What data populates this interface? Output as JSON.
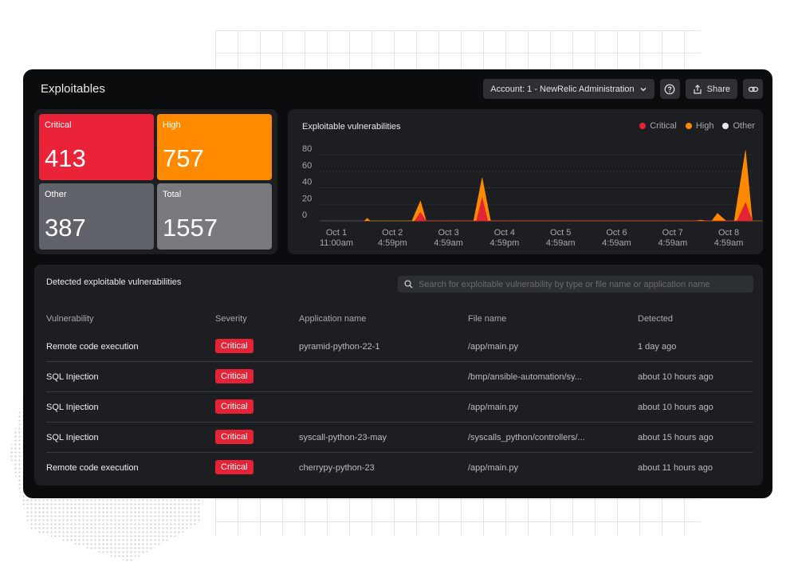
{
  "app": {
    "title": "Exploitables"
  },
  "toolbar": {
    "account_label": "Account: 1 - NewRelic Administration",
    "share_label": "Share"
  },
  "stats": [
    {
      "label": "Critical",
      "value": "413",
      "color": "#ea2338"
    },
    {
      "label": "High",
      "value": "757",
      "color": "#ff8a00"
    },
    {
      "label": "Other",
      "value": "387",
      "color": "#5f6268"
    },
    {
      "label": "Total",
      "value": "1557",
      "color": "#77797e"
    }
  ],
  "chart": {
    "title": "Exploitable vulnerabilities",
    "legend": [
      {
        "name": "Critical",
        "color": "#e42336"
      },
      {
        "name": "High",
        "color": "#ff8a00"
      },
      {
        "name": "Other",
        "color": "#e9eaec"
      }
    ]
  },
  "chart_data": {
    "type": "area",
    "title": "Exploitable vulnerabilities",
    "yticks": [
      0,
      20,
      40,
      60,
      80
    ],
    "ylim": [
      0,
      80
    ],
    "xticks": [
      [
        "Oct 1",
        "11:00am"
      ],
      [
        "Oct 2",
        "4:59pm"
      ],
      [
        "Oct 3",
        "4:59am"
      ],
      [
        "Oct 4",
        "4:59pm"
      ],
      [
        "Oct 5",
        "4:59am"
      ],
      [
        "Oct 6",
        "4:59am"
      ],
      [
        "Oct 7",
        "4:59am"
      ],
      [
        "Oct 8",
        "4:59am"
      ]
    ],
    "legend_position": "top-right",
    "grid": true,
    "series": [
      {
        "name": "High",
        "color": "#ff8a00",
        "points": [
          [
            0.5,
            0
          ],
          [
            0.55,
            3
          ],
          [
            0.6,
            0
          ],
          [
            1.35,
            0
          ],
          [
            1.5,
            24
          ],
          [
            1.6,
            0
          ],
          [
            2.45,
            0
          ],
          [
            2.6,
            52
          ],
          [
            2.75,
            0
          ],
          [
            6.4,
            0
          ],
          [
            6.5,
            1
          ],
          [
            6.6,
            0
          ],
          [
            6.7,
            0
          ],
          [
            6.8,
            9
          ],
          [
            6.95,
            0
          ],
          [
            7.1,
            0
          ],
          [
            7.3,
            85
          ],
          [
            7.42,
            0
          ],
          [
            7.6,
            0
          ]
        ]
      },
      {
        "name": "Critical",
        "color": "#e42336",
        "points": [
          [
            1.4,
            0
          ],
          [
            1.5,
            10
          ],
          [
            1.6,
            0
          ],
          [
            2.5,
            0
          ],
          [
            2.6,
            28
          ],
          [
            2.7,
            0
          ],
          [
            7.15,
            0
          ],
          [
            7.3,
            22
          ],
          [
            7.42,
            0
          ]
        ]
      }
    ]
  },
  "table": {
    "title": "Detected exploitable vulnerabilities",
    "search_placeholder": "Search for exploitable vulnerability by type or file name or application name",
    "columns": [
      "Vulnerability",
      "Severity",
      "Application name",
      "File name",
      "Detected"
    ],
    "rows": [
      {
        "vulnerability": "Remote code execution",
        "severity": "Critical",
        "app": "pyramid-python-22-1",
        "file": "/app/main.py",
        "detected": "1 day ago"
      },
      {
        "vulnerability": "SQL Injection",
        "severity": "Critical",
        "app": "",
        "file": "/bmp/ansible-automation/sy...",
        "detected": "about 10 hours ago"
      },
      {
        "vulnerability": "SQL Injection",
        "severity": "Critical",
        "app": "",
        "file": "/app/main.py",
        "detected": "about 10 hours ago"
      },
      {
        "vulnerability": "SQL Injection",
        "severity": "Critical",
        "app": "syscall-python-23-may",
        "file": "/syscalls_python/controllers/...",
        "detected": "about 15 hours ago"
      },
      {
        "vulnerability": "Remote code execution",
        "severity": "Critical",
        "app": "cherrypy-python-23",
        "file": "/app/main.py",
        "detected": "about 11 hours ago"
      }
    ]
  }
}
